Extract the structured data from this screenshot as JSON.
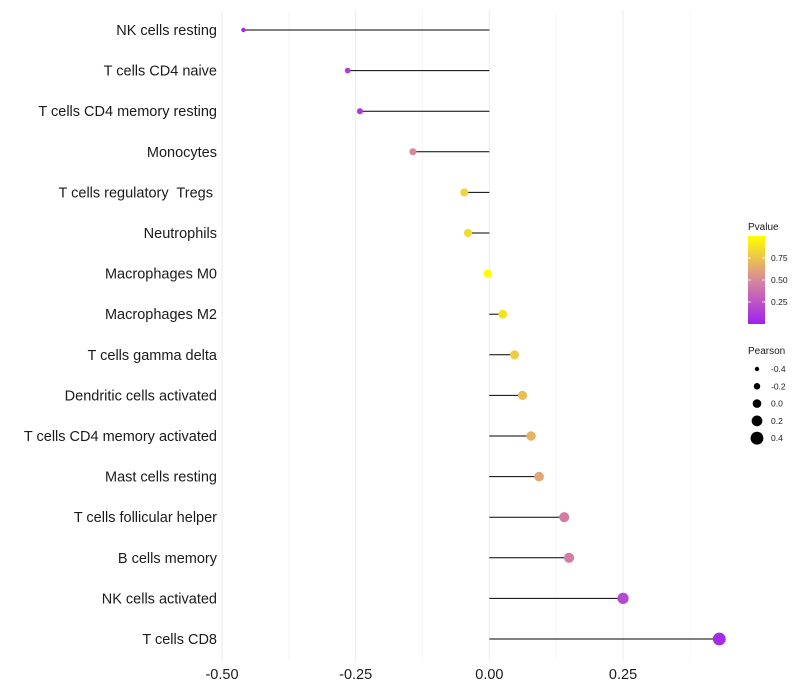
{
  "chart_data": {
    "type": "lollipop",
    "title": "",
    "xlabel": "",
    "ylabel": "",
    "xlim": [
      -0.5,
      0.45
    ],
    "x_ticks": [
      -0.5,
      -0.25,
      0.0,
      0.25
    ],
    "x_tick_labels": [
      "-0.50",
      "-0.25",
      "0.00",
      "0.25"
    ],
    "baseline": 0,
    "categories": [
      "NK cells resting",
      "T cells CD4 naive",
      "T cells CD4 memory resting",
      "Monocytes",
      "T cells regulatory  Tregs ",
      "Neutrophils",
      "Macrophages M0",
      "Macrophages M2",
      "T cells gamma delta",
      "Dendritic cells activated",
      "T cells CD4 memory activated",
      "Mast cells resting",
      "T cells follicular helper",
      "B cells memory",
      "NK cells activated",
      "T cells CD8"
    ],
    "pearson": [
      -0.46,
      -0.265,
      -0.242,
      -0.143,
      -0.047,
      -0.04,
      -0.003,
      0.025,
      0.047,
      0.062,
      0.078,
      0.093,
      0.14,
      0.149,
      0.25,
      0.43
    ],
    "pvalue": [
      0.02,
      0.15,
      0.12,
      0.5,
      0.82,
      0.85,
      0.99,
      0.88,
      0.78,
      0.72,
      0.68,
      0.62,
      0.45,
      0.45,
      0.2,
      0.05
    ],
    "legend": {
      "color": {
        "title": "Pvalue",
        "ticks": [
          0.25,
          0.5,
          0.75
        ],
        "tick_labels": [
          "0.25",
          "0.50",
          "0.75"
        ],
        "range": [
          0.0,
          1.0
        ],
        "low_color": "#a020f0",
        "mid_color": "#d8889b",
        "high_color": "#ffff00"
      },
      "size": {
        "title": "Pearson",
        "values": [
          -0.4,
          -0.2,
          0.0,
          0.2,
          0.4
        ],
        "labels": [
          "-0.4",
          "-0.2",
          "0.0",
          "0.2",
          "0.4"
        ]
      }
    }
  }
}
